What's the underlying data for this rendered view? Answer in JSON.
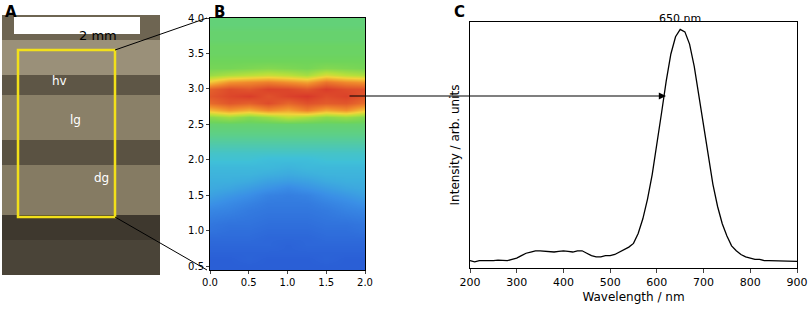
{
  "chart_data": [
    {
      "type": "image",
      "panel": "A",
      "scale_bar": "2 mm",
      "labels": [
        "hv",
        "lg",
        "dg"
      ]
    },
    {
      "type": "heatmap",
      "panel": "B",
      "x": [
        0,
        0.25,
        0.5,
        0.75,
        1,
        1.25,
        1.5,
        1.75,
        2
      ],
      "y": [
        0.5,
        0.6,
        0.7,
        0.8,
        0.9,
        1,
        1.1,
        1.2,
        1.3,
        1.4,
        1.5,
        1.6,
        1.7,
        1.8,
        1.9,
        2,
        2.1,
        2.2,
        2.3,
        2.4,
        2.5,
        2.6,
        2.7,
        2.8,
        2.9,
        3,
        3.1,
        3.2,
        3.3,
        3.4,
        3.5,
        3.6,
        3.7,
        3.8,
        3.9,
        4
      ],
      "z": [
        [
          0.15,
          0.15,
          0.15,
          0.15,
          0.15,
          0.15,
          0.15,
          0.15,
          0.15
        ],
        [
          0.15,
          0.15,
          0.16,
          0.15,
          0.15,
          0.15,
          0.16,
          0.15,
          0.15
        ],
        [
          0.16,
          0.16,
          0.16,
          0.16,
          0.16,
          0.16,
          0.16,
          0.16,
          0.16
        ],
        [
          0.17,
          0.17,
          0.17,
          0.17,
          0.16,
          0.17,
          0.17,
          0.17,
          0.17
        ],
        [
          0.18,
          0.18,
          0.18,
          0.17,
          0.17,
          0.17,
          0.18,
          0.18,
          0.18
        ],
        [
          0.2,
          0.19,
          0.19,
          0.18,
          0.18,
          0.18,
          0.19,
          0.19,
          0.2
        ],
        [
          0.21,
          0.2,
          0.2,
          0.19,
          0.19,
          0.19,
          0.2,
          0.2,
          0.21
        ],
        [
          0.23,
          0.22,
          0.21,
          0.2,
          0.2,
          0.2,
          0.21,
          0.22,
          0.23
        ],
        [
          0.25,
          0.24,
          0.22,
          0.21,
          0.21,
          0.21,
          0.22,
          0.24,
          0.25
        ],
        [
          0.28,
          0.26,
          0.24,
          0.22,
          0.22,
          0.22,
          0.24,
          0.26,
          0.28
        ],
        [
          0.31,
          0.29,
          0.27,
          0.24,
          0.23,
          0.24,
          0.27,
          0.29,
          0.31
        ],
        [
          0.33,
          0.32,
          0.3,
          0.28,
          0.26,
          0.28,
          0.3,
          0.32,
          0.33
        ],
        [
          0.34,
          0.34,
          0.33,
          0.31,
          0.3,
          0.31,
          0.33,
          0.34,
          0.34
        ],
        [
          0.35,
          0.35,
          0.35,
          0.34,
          0.33,
          0.34,
          0.35,
          0.35,
          0.35
        ],
        [
          0.36,
          0.36,
          0.36,
          0.36,
          0.35,
          0.36,
          0.36,
          0.36,
          0.36
        ],
        [
          0.38,
          0.38,
          0.38,
          0.37,
          0.37,
          0.37,
          0.38,
          0.38,
          0.38
        ],
        [
          0.39,
          0.39,
          0.39,
          0.39,
          0.39,
          0.39,
          0.39,
          0.39,
          0.39
        ],
        [
          0.41,
          0.41,
          0.41,
          0.41,
          0.41,
          0.41,
          0.41,
          0.41,
          0.41
        ],
        [
          0.43,
          0.43,
          0.43,
          0.43,
          0.43,
          0.43,
          0.43,
          0.43,
          0.43
        ],
        [
          0.45,
          0.45,
          0.45,
          0.45,
          0.45,
          0.45,
          0.45,
          0.45,
          0.45
        ],
        [
          0.47,
          0.47,
          0.47,
          0.47,
          0.47,
          0.47,
          0.47,
          0.47,
          0.47
        ],
        [
          0.53,
          0.56,
          0.52,
          0.55,
          0.6,
          0.57,
          0.53,
          0.55,
          0.52
        ],
        [
          0.72,
          0.78,
          0.74,
          0.8,
          0.76,
          0.82,
          0.75,
          0.79,
          0.7
        ],
        [
          0.86,
          0.9,
          0.88,
          0.92,
          0.87,
          0.91,
          0.89,
          0.9,
          0.85
        ],
        [
          0.9,
          0.93,
          0.95,
          0.91,
          0.94,
          0.96,
          0.92,
          0.94,
          0.9
        ],
        [
          0.88,
          0.92,
          0.9,
          0.94,
          0.93,
          0.9,
          0.95,
          0.92,
          0.91
        ],
        [
          0.7,
          0.78,
          0.8,
          0.82,
          0.79,
          0.76,
          0.84,
          0.8,
          0.78
        ],
        [
          0.55,
          0.58,
          0.6,
          0.62,
          0.6,
          0.57,
          0.64,
          0.6,
          0.58
        ],
        [
          0.5,
          0.5,
          0.51,
          0.52,
          0.51,
          0.5,
          0.52,
          0.51,
          0.5
        ],
        [
          0.49,
          0.49,
          0.49,
          0.49,
          0.49,
          0.49,
          0.49,
          0.49,
          0.49
        ],
        [
          0.48,
          0.48,
          0.48,
          0.48,
          0.48,
          0.48,
          0.48,
          0.48,
          0.48
        ],
        [
          0.48,
          0.48,
          0.48,
          0.48,
          0.48,
          0.48,
          0.48,
          0.48,
          0.48
        ],
        [
          0.47,
          0.47,
          0.47,
          0.47,
          0.47,
          0.47,
          0.47,
          0.47,
          0.47
        ],
        [
          0.47,
          0.47,
          0.47,
          0.47,
          0.47,
          0.47,
          0.47,
          0.47,
          0.47
        ],
        [
          0.46,
          0.46,
          0.46,
          0.46,
          0.46,
          0.46,
          0.46,
          0.46,
          0.46
        ],
        [
          0.46,
          0.46,
          0.46,
          0.46,
          0.46,
          0.46,
          0.46,
          0.46,
          0.46
        ]
      ],
      "xlim": [
        0,
        2
      ],
      "ylim": [
        0.45,
        4
      ],
      "xticks": [
        {
          "value": 0,
          "label": "0.0"
        },
        0.5,
        {
          "value": 1,
          "label": "1.0"
        },
        1.5,
        {
          "value": 2,
          "label": "2.0"
        }
      ],
      "yticks": [
        0.5,
        {
          "value": 1,
          "label": "1.0"
        },
        1.5,
        {
          "value": 2,
          "label": "2.0"
        },
        2.5,
        {
          "value": 3,
          "label": "3.0"
        },
        3.5,
        {
          "value": 4,
          "label": "4.0"
        }
      ]
    },
    {
      "type": "line",
      "panel": "C",
      "x": [
        200,
        210,
        220,
        230,
        240,
        250,
        260,
        270,
        280,
        290,
        300,
        310,
        320,
        330,
        340,
        350,
        360,
        370,
        380,
        390,
        400,
        410,
        420,
        430,
        440,
        450,
        460,
        470,
        480,
        490,
        500,
        510,
        520,
        530,
        540,
        550,
        560,
        570,
        580,
        590,
        600,
        610,
        620,
        630,
        640,
        650,
        660,
        670,
        680,
        690,
        700,
        710,
        720,
        730,
        740,
        750,
        760,
        770,
        780,
        790,
        800,
        810,
        820,
        830,
        840,
        850,
        860,
        870,
        880,
        890,
        900
      ],
      "values": [
        0.03,
        0.025,
        0.03,
        0.03,
        0.028,
        0.03,
        0.032,
        0.03,
        0.03,
        0.035,
        0.04,
        0.05,
        0.06,
        0.065,
        0.07,
        0.07,
        0.068,
        0.065,
        0.065,
        0.068,
        0.07,
        0.068,
        0.065,
        0.07,
        0.07,
        0.06,
        0.05,
        0.045,
        0.045,
        0.05,
        0.05,
        0.055,
        0.065,
        0.075,
        0.085,
        0.1,
        0.14,
        0.2,
        0.28,
        0.38,
        0.5,
        0.63,
        0.76,
        0.87,
        0.94,
        0.97,
        0.96,
        0.91,
        0.82,
        0.7,
        0.57,
        0.45,
        0.34,
        0.25,
        0.18,
        0.13,
        0.09,
        0.07,
        0.055,
        0.045,
        0.04,
        0.035,
        0.035,
        0.03,
        0.03,
        0.03,
        0.03,
        0.028,
        0.03,
        0.028,
        0.027
      ],
      "color": "#000000",
      "xlim": [
        200,
        900
      ],
      "ylim": [
        0,
        1
      ],
      "xticks": [
        200,
        300,
        400,
        500,
        600,
        700,
        800,
        900
      ],
      "tick_labels": "x",
      "xlabel": "Wavelength / nm",
      "ylabel": "Intensity / arb. units",
      "annotations": [
        {
          "text": "650 nm",
          "x": 650
        }
      ]
    }
  ]
}
